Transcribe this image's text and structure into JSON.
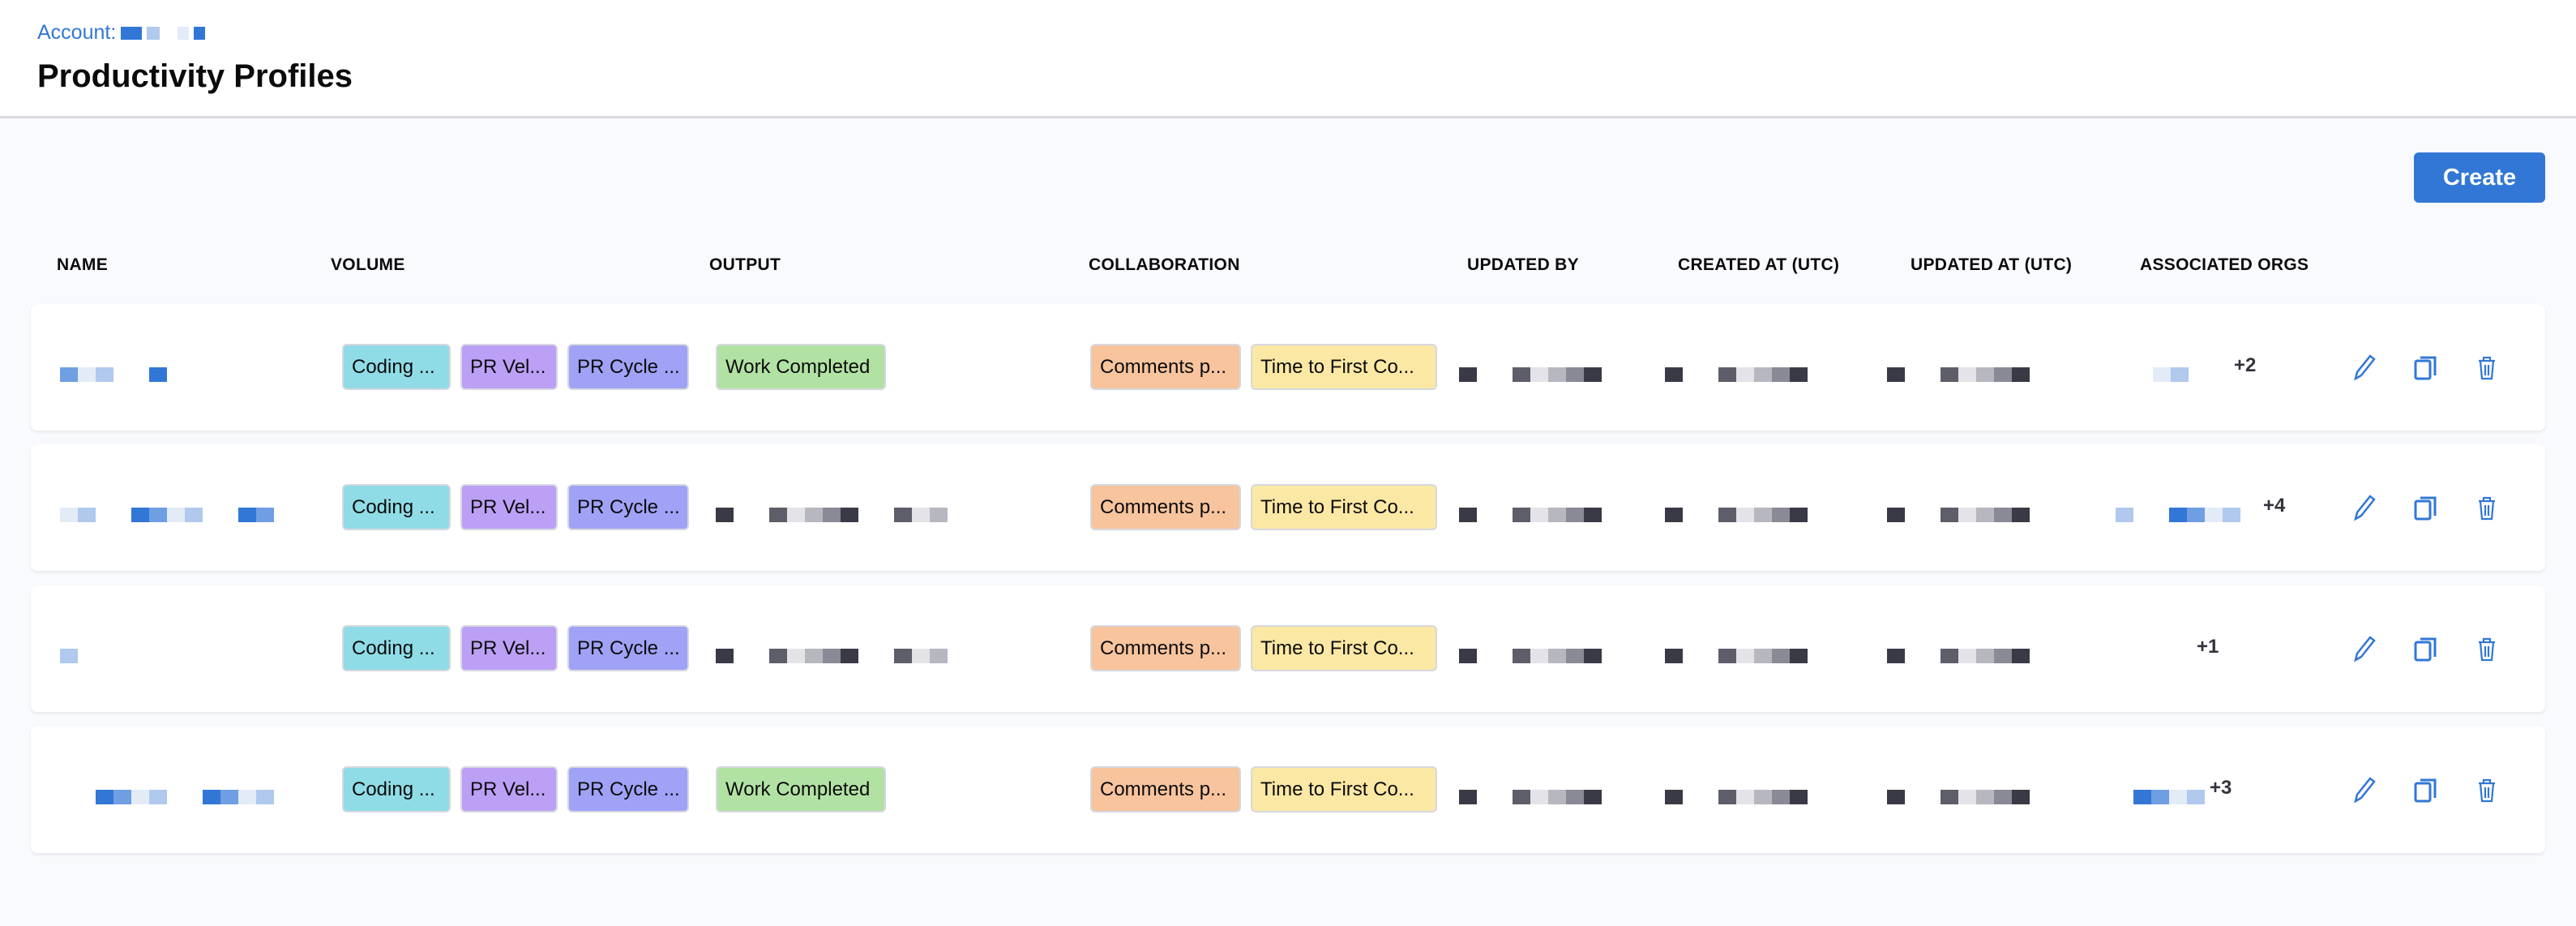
{
  "header": {
    "account_label": "Account:",
    "title": "Productivity Profiles"
  },
  "toolbar": {
    "create_label": "Create"
  },
  "columns": [
    "NAME",
    "VOLUME",
    "OUTPUT",
    "COLLABORATION",
    "UPDATED BY",
    "CREATED AT (UTC)",
    "UPDATED AT (UTC)",
    "ASSOCIATED ORGS"
  ],
  "colors": {
    "accent": "#3277d6",
    "coding": "#8fdce6",
    "pr_velocity": "#bca0f5",
    "pr_cycle": "#9fa2f5",
    "work_completed": "#b2e2a3",
    "comments": "#f7c49d",
    "time_to_first": "#fbe8a4"
  },
  "rows": [
    {
      "volume": [
        "Coding ...",
        "PR Vel...",
        "PR Cycle ..."
      ],
      "output": "Work Completed",
      "collaboration": [
        "Comments p...",
        "Time to First Co..."
      ],
      "orgs_more": "+2"
    },
    {
      "volume": [
        "Coding ...",
        "PR Vel...",
        "PR Cycle ..."
      ],
      "output": "",
      "collaboration": [
        "Comments p...",
        "Time to First Co..."
      ],
      "orgs_more": "+4"
    },
    {
      "volume": [
        "Coding ...",
        "PR Vel...",
        "PR Cycle ..."
      ],
      "output": "",
      "collaboration": [
        "Comments p...",
        "Time to First Co..."
      ],
      "orgs_more": "+1"
    },
    {
      "volume": [
        "Coding ...",
        "PR Vel...",
        "PR Cycle ..."
      ],
      "output": "Work Completed",
      "collaboration": [
        "Comments p...",
        "Time to First Co..."
      ],
      "orgs_more": "+3"
    }
  ],
  "icons": {
    "edit": "pencil-icon",
    "copy": "copy-icon",
    "delete": "trash-icon"
  }
}
